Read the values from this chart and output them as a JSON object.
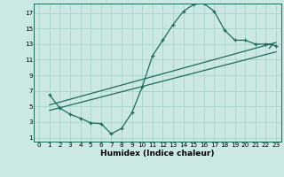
{
  "title": "",
  "xlabel": "Humidex (Indice chaleur)",
  "bg_color": "#cce8e4",
  "grid_color": "#aad4cc",
  "line_color": "#1e6b5e",
  "xlim": [
    -0.5,
    23.5
  ],
  "ylim": [
    0.5,
    18.2
  ],
  "xticks": [
    0,
    1,
    2,
    3,
    4,
    5,
    6,
    7,
    8,
    9,
    10,
    11,
    12,
    13,
    14,
    15,
    16,
    17,
    18,
    19,
    20,
    21,
    22,
    23
  ],
  "yticks": [
    1,
    3,
    5,
    7,
    9,
    11,
    13,
    15,
    17
  ],
  "curve1_x": [
    1,
    2,
    3,
    4,
    5,
    6,
    7,
    8,
    9,
    10,
    11,
    12,
    13,
    14,
    15,
    16,
    17,
    18,
    19,
    20,
    21,
    22,
    23
  ],
  "curve1_y": [
    6.5,
    4.8,
    4.0,
    3.5,
    2.9,
    2.8,
    1.5,
    2.2,
    4.2,
    7.5,
    11.5,
    13.5,
    15.5,
    17.2,
    18.1,
    18.2,
    17.2,
    14.8,
    13.5,
    13.5,
    13.0,
    13.0,
    12.8
  ],
  "curve2_x": [
    1,
    23
  ],
  "curve2_y": [
    5.2,
    13.2
  ],
  "curve3_x": [
    1,
    23
  ],
  "curve3_y": [
    4.5,
    12.0
  ]
}
